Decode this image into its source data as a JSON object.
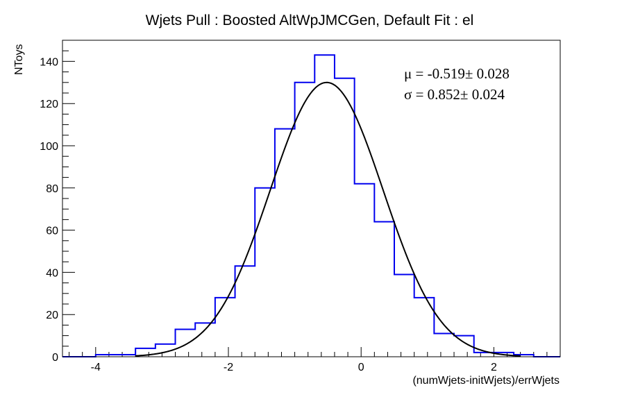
{
  "chart_data": {
    "type": "histogram",
    "title": "Wjets Pull : Boosted AltWpJMCGen, Default Fit : el",
    "xlabel": "(numWjets-initWjets)/errWjets",
    "ylabel": "NToys",
    "xlim": [
      -4.5,
      3.0
    ],
    "ylim": [
      0,
      150
    ],
    "x_ticks": [
      "-4",
      "-2",
      "0",
      "2"
    ],
    "y_ticks": [
      "0",
      "20",
      "40",
      "60",
      "80",
      "100",
      "120",
      "140"
    ],
    "x_tick_values": [
      -4,
      -2,
      0,
      2
    ],
    "y_tick_values": [
      0,
      20,
      40,
      60,
      80,
      100,
      120,
      140
    ],
    "hist_color": "#0000ee",
    "fit_color": "#000000",
    "bin_edges": [
      -4.0,
      -3.7,
      -3.4,
      -3.1,
      -2.8,
      -2.5,
      -2.2,
      -1.9,
      -1.6,
      -1.3,
      -1.0,
      -0.7,
      -0.4,
      -0.1,
      0.2,
      0.5,
      0.8,
      1.1,
      1.4,
      1.7,
      2.0,
      2.3,
      2.6
    ],
    "counts": [
      1,
      1,
      4,
      6,
      13,
      16,
      28,
      43,
      80,
      108,
      130,
      143,
      132,
      82,
      64,
      39,
      28,
      11,
      10,
      2,
      2,
      1
    ],
    "fit": {
      "mean": -0.519,
      "sigma": 0.852,
      "amplitude": 130
    },
    "stats": {
      "mu_line": "μ = -0.519± 0.028",
      "sigma_line": "σ =  0.852± 0.024"
    }
  }
}
